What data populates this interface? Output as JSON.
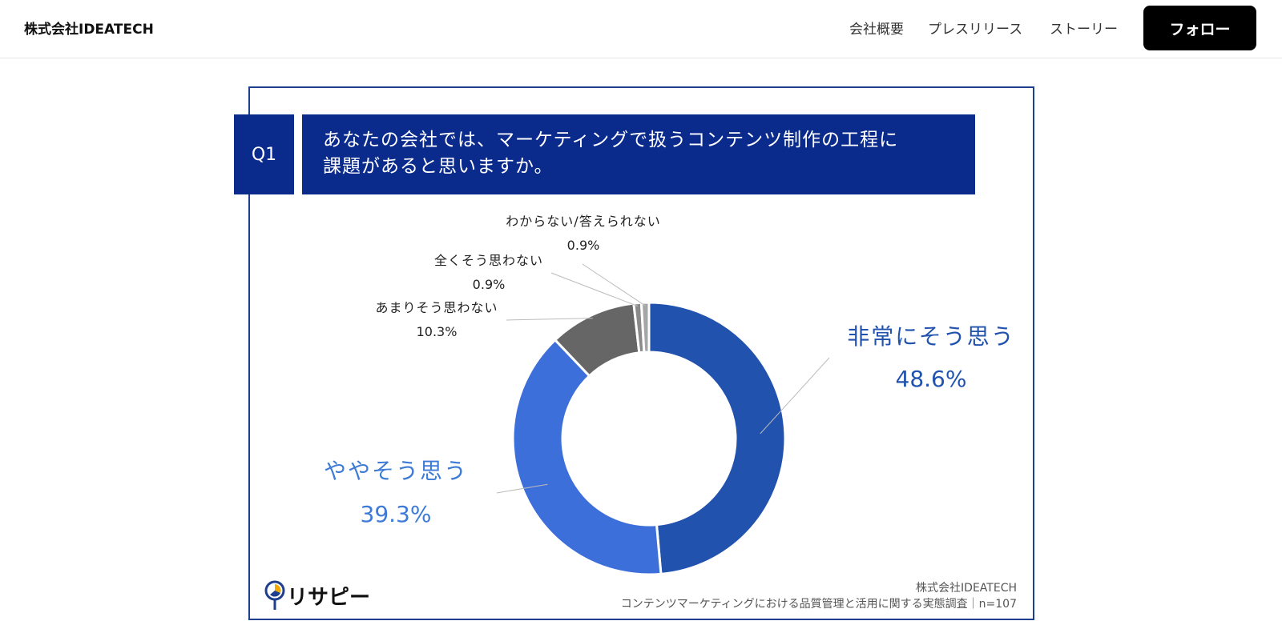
{
  "header": {
    "brand": "株式会社IDEATECH",
    "nav": [
      "会社概要",
      "プレスリリース",
      "ストーリー"
    ],
    "follow_label": "フォロー"
  },
  "question": {
    "number": "Q1",
    "text_line1": "あなたの会社では、マーケティングで扱うコンテンツ制作の工程に",
    "text_line2": "課題があると思いますか。"
  },
  "chart_data": {
    "type": "pie",
    "donut": true,
    "slices": [
      {
        "label": "非常にそう思う",
        "value": 48.6,
        "display": "48.6%",
        "color": "#2152ad"
      },
      {
        "label": "ややそう思う",
        "value": 39.3,
        "display": "39.3%",
        "color": "#3d6fdb"
      },
      {
        "label": "あまりそう思わない",
        "value": 10.3,
        "display": "10.3%",
        "color": "#666666"
      },
      {
        "label": "全くそう思わない",
        "value": 0.9,
        "display": "0.9%",
        "color": "#8a8a8a"
      },
      {
        "label": "わからない/答えられない",
        "value": 0.9,
        "display": "0.9%",
        "color": "#a6a6a6"
      }
    ]
  },
  "footer": {
    "company": "株式会社IDEATECH",
    "survey": "コンテンツマーケティングにおける品質管理と活用に関する実態調査｜n=107",
    "logo_text": "リサピー"
  }
}
